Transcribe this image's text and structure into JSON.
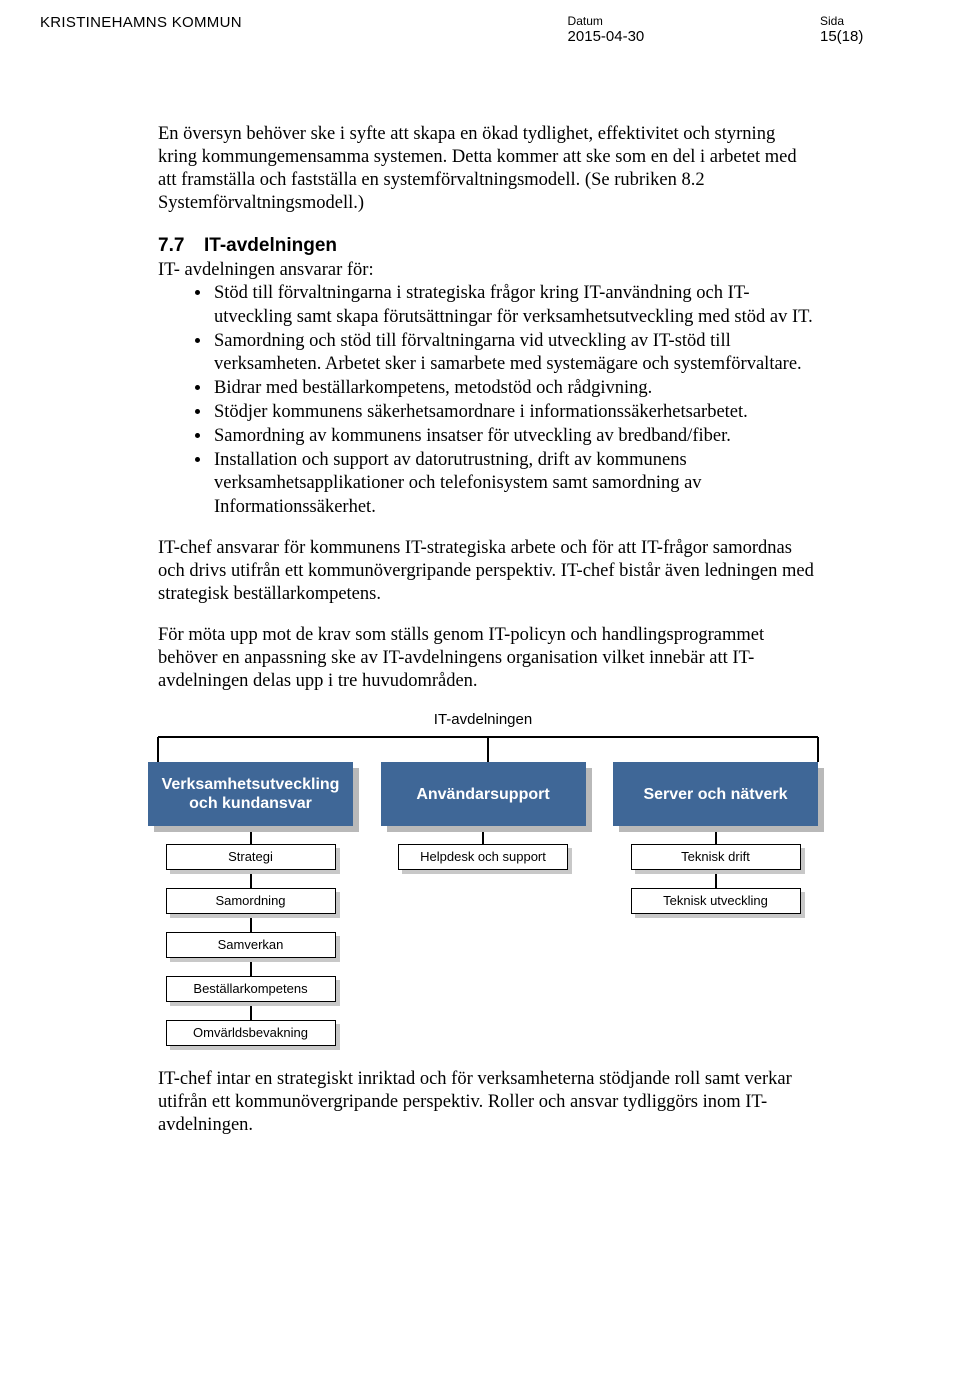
{
  "header": {
    "org": "KRISTINEHAMNS KOMMUN",
    "date_label": "Datum",
    "date": "2015-04-30",
    "page_label": "Sida",
    "page": "15(18)"
  },
  "intro_p": "En översyn behöver ske i syfte att skapa en ökad tydlighet, effektivitet och styrning kring kommungemensamma systemen. Detta kommer att ske som en del i arbetet med att framställa och fastställa en systemförvaltningsmodell. (Se rubriken 8.2 Systemförvaltningsmodell.)",
  "section": {
    "num": "7.7",
    "title": "IT-avdelningen"
  },
  "lead": "IT- avdelningen ansvarar för:",
  "bullets": [
    "Stöd till förvaltningarna i strategiska frågor kring IT-användning och IT-utveckling samt skapa förutsättningar för verksamhetsutveckling med stöd av IT.",
    "Samordning och stöd till förvaltningarna vid utveckling av IT-stöd till verksamheten. Arbetet sker i samarbete med systemägare och systemförvaltare.",
    "Bidrar med beställarkompetens, metodstöd och rådgivning.",
    "Stödjer kommunens säkerhetsamordnare i informationssäkerhetsarbetet.",
    "Samordning av kommunens insatser för utveckling av bredband/fiber.",
    "Installation och support av datorutrustning, drift av kommunens verksamhetsapplikationer och telefonisystem samt samordning av Informationssäkerhet."
  ],
  "p2": "IT-chef ansvarar för kommunens IT-strategiska arbete och för att IT-frågor samordnas och drivs utifrån ett kommunövergripande perspektiv. IT-chef bistår även ledningen med strategisk beställarkompetens.",
  "p3": "För möta upp mot de krav som ställs genom IT-policyn och handlingsprogrammet behöver en anpassning ske av IT-avdelningens organisation vilket innebär att IT-avdelningen delas upp i tre huvudområden.",
  "org": {
    "title": "IT-avdelningen",
    "main_bg": "#3f6797",
    "main_fg": "#ffffff",
    "shadow": "#b9b9b9",
    "sub_shadow": "#c8c8c8",
    "sub_bg": "#ffffff",
    "line": "#000000",
    "cols": [
      {
        "main": "Verksamhetsutveckling och kundansvar",
        "subs": [
          "Strategi",
          "Samordning",
          "Samverkan",
          "Beställarkompetens",
          "Omvärldsbevakning"
        ]
      },
      {
        "main": "Användarsupport",
        "subs": [
          "Helpdesk och support"
        ]
      },
      {
        "main": "Server och nätverk",
        "subs": [
          "Teknisk drift",
          "Teknisk utveckling"
        ]
      }
    ]
  },
  "p4": "IT-chef intar en strategiskt inriktad och för verksamheterna stödjande roll samt verkar utifrån ett kommunövergripande perspektiv. Roller och ansvar tydliggörs inom IT-avdelningen."
}
